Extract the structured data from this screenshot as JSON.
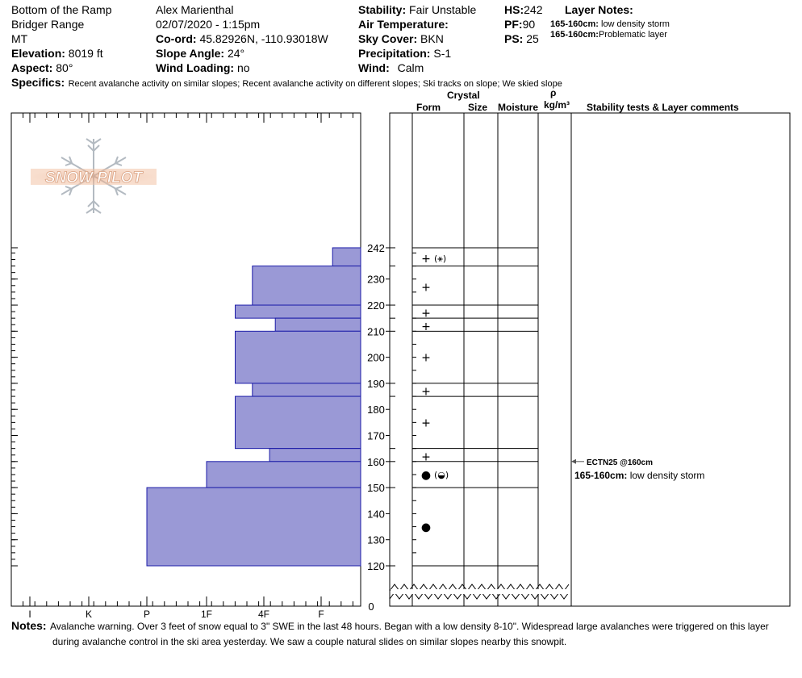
{
  "header": {
    "location": "Bottom of the Ramp",
    "range": "Bridger Range",
    "state": "MT",
    "elevation_label": "Elevation:",
    "elevation": "8019 ft",
    "aspect_label": "Aspect:",
    "aspect": "80°",
    "observer": "Alex Marienthal",
    "datetime": "02/07/2020 - 1:15pm",
    "coord_label": "Co-ord:",
    "coord": "45.82926N, -110.93018W",
    "slope_label": "Slope Angle:",
    "slope": "24°",
    "wind_loading_label": "Wind Loading:",
    "wind_loading": "no",
    "stability_label": "Stability:",
    "stability": "Fair Unstable",
    "air_temp_label": "Air Temperature:",
    "sky_label": "Sky Cover:",
    "sky": "BKN",
    "precip_label": "Precipitation:",
    "precip": "S-1",
    "wind_label": "Wind:",
    "wind": "Calm",
    "hs_label": "HS:",
    "hs": "242",
    "pf_label": "PF:",
    "pf": "90",
    "ps_label": "PS:",
    "ps": "25",
    "layer_notes_label": "Layer Notes:",
    "layer_notes": [
      {
        "range": "165-160cm:",
        "text": "low density storm"
      },
      {
        "range": "165-160cm:",
        "text": "Problematic layer"
      }
    ],
    "specifics_label": "Specifics:",
    "specifics": "Recent avalanche activity on similar slopes; Recent avalanche activity on different slopes; Ski tracks on slope; We skied slope"
  },
  "logo_text": "SNOW PILOT",
  "columns": {
    "crystal": "Crystal",
    "form": "Form",
    "size": "Size",
    "moisture": "Moisture",
    "rho": "ρ",
    "density_unit": "kg/m³",
    "comments": "Stability tests & Layer comments"
  },
  "chart_data": {
    "type": "snow-profile",
    "hardness_scale": [
      "I",
      "K",
      "P",
      "1F",
      "4F",
      "F"
    ],
    "depth_ticks": [
      120,
      130,
      140,
      150,
      160,
      170,
      180,
      190,
      200,
      210,
      220,
      230,
      242
    ],
    "bottom_label": "0",
    "hardness_layers": [
      {
        "top": 242,
        "bottom": 235,
        "hardness": 6.2
      },
      {
        "top": 235,
        "bottom": 220,
        "hardness": 4.8
      },
      {
        "top": 220,
        "bottom": 215,
        "hardness": 4.5
      },
      {
        "top": 215,
        "bottom": 210,
        "hardness": 5.2
      },
      {
        "top": 210,
        "bottom": 190,
        "hardness": 4.5
      },
      {
        "top": 190,
        "bottom": 185,
        "hardness": 4.8
      },
      {
        "top": 185,
        "bottom": 165,
        "hardness": 4.5
      },
      {
        "top": 165,
        "bottom": 160,
        "hardness": 5.1
      },
      {
        "top": 160,
        "bottom": 150,
        "hardness": 4.0
      },
      {
        "top": 150,
        "bottom": 120,
        "hardness": 3.0
      }
    ],
    "layer_boundaries": [
      242,
      235,
      220,
      215,
      210,
      190,
      185,
      165,
      160,
      150,
      120
    ],
    "crystals": [
      {
        "depth": 238,
        "primary": "+",
        "secondary": "(⚹)"
      },
      {
        "depth": 227,
        "primary": "+",
        "secondary": ""
      },
      {
        "depth": 217,
        "primary": "+",
        "secondary": ""
      },
      {
        "depth": 212,
        "primary": "+",
        "secondary": ""
      },
      {
        "depth": 200,
        "primary": "+",
        "secondary": ""
      },
      {
        "depth": 187,
        "primary": "+",
        "secondary": ""
      },
      {
        "depth": 175,
        "primary": "+",
        "secondary": ""
      },
      {
        "depth": 162,
        "primary": "+",
        "secondary": ""
      },
      {
        "depth": 155,
        "primary": "●",
        "secondary": "(◒)"
      },
      {
        "depth": 135,
        "primary": "●",
        "secondary": ""
      }
    ],
    "stability_tests": [
      {
        "depth": 160,
        "label": "ECTN25 @160cm"
      }
    ],
    "layer_comments": [
      {
        "depth": 155,
        "range": "165-160cm:",
        "text": "low density storm"
      }
    ]
  },
  "notes_label": "Notes:",
  "notes_line1": "Avalanche warning. Over 3 feet of snow equal to 3\" SWE in the last 48 hours. Began with a low density 8-10\". Widespread large avalanches were triggered on this layer",
  "notes_line2": "during avalanche control in the ski area yesterday. We saw a couple natural slides on similar slopes nearby this snowpit."
}
